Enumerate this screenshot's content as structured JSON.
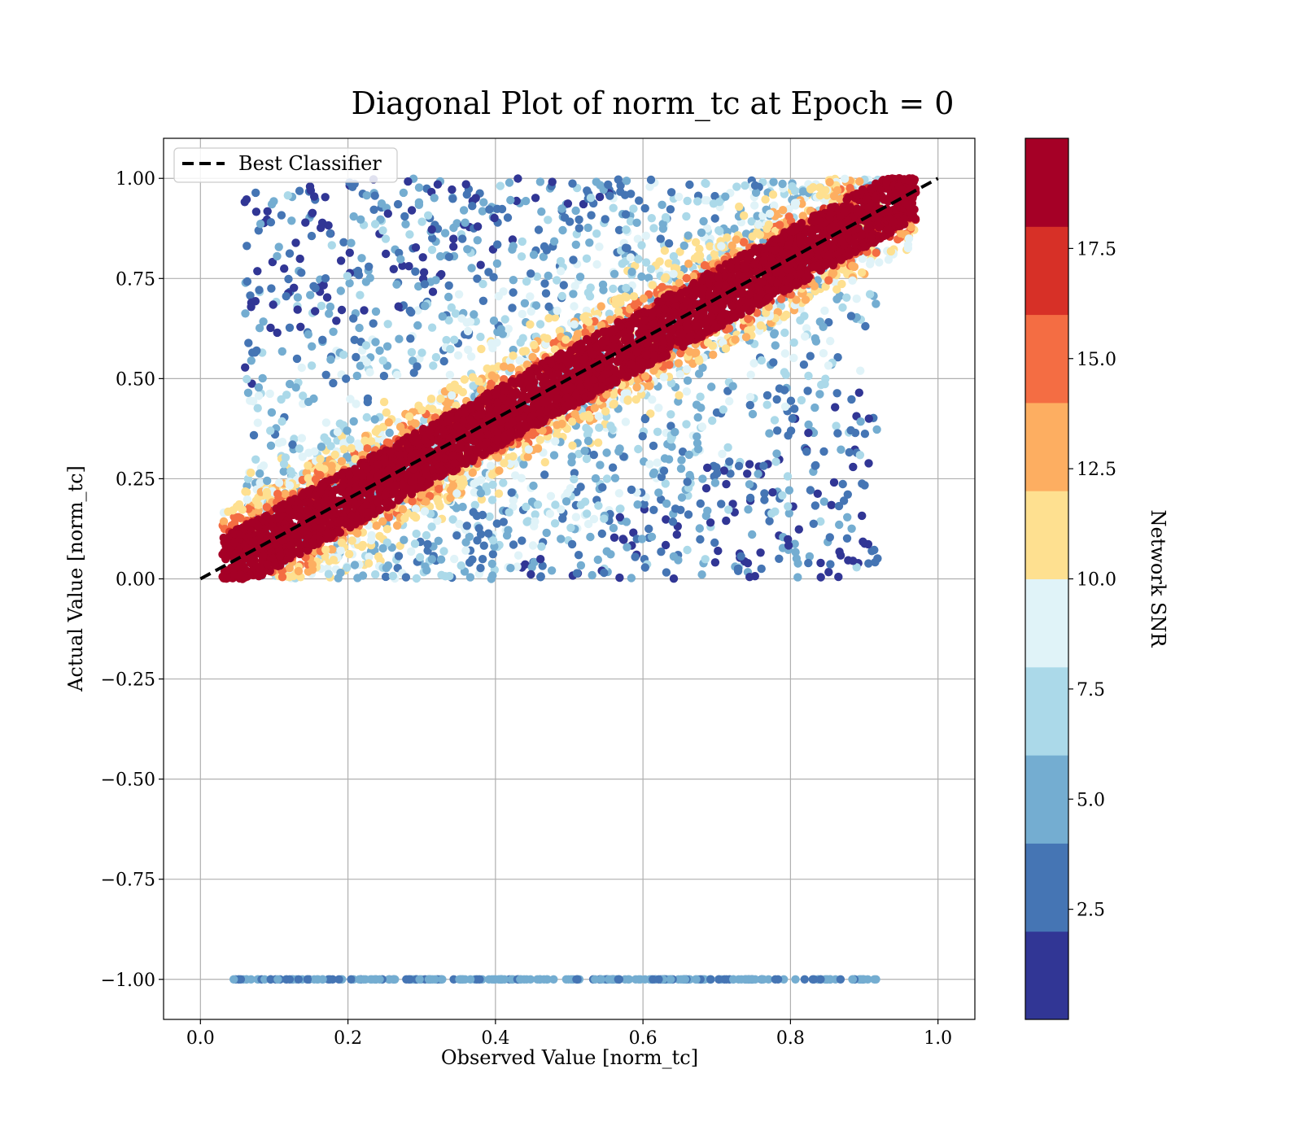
{
  "chart_data": {
    "type": "scatter",
    "title": "Diagonal Plot of norm_tc at Epoch = 0",
    "xlabel": "Observed Value [norm_tc]",
    "ylabel": "Actual Value [norm_tc]",
    "xlim": [
      -0.05,
      1.05
    ],
    "ylim": [
      -1.1,
      1.1
    ],
    "x_ticks": [
      0.0,
      0.2,
      0.4,
      0.6,
      0.8,
      1.0
    ],
    "x_tick_labels": [
      "0.0",
      "0.2",
      "0.4",
      "0.6",
      "0.8",
      "1.0"
    ],
    "y_ticks": [
      1.0,
      0.75,
      0.5,
      0.25,
      0.0,
      -0.25,
      -0.5,
      -0.75,
      -1.0
    ],
    "y_tick_labels": [
      "1.00",
      "0.75",
      "0.50",
      "0.25",
      "0.00",
      "−0.25",
      "−0.50",
      "−0.75",
      "−1.00"
    ],
    "grid": true,
    "legend": {
      "position": "top-left",
      "entries": [
        {
          "label": "Best Classifier",
          "style": "dashed",
          "color": "#000000"
        }
      ]
    },
    "reference_line": {
      "label": "Best Classifier",
      "x": [
        0.0,
        1.0
      ],
      "y": [
        0.0,
        1.0
      ]
    },
    "point_regions": [
      {
        "description_value": "diagonal band",
        "x_range": [
          0.03,
          0.97
        ],
        "y_offset_range": [
          -0.06,
          0.06
        ],
        "snr_range": [
          17.5,
          20
        ]
      },
      {
        "description_value": "upper scatter",
        "x_range": [
          0.06,
          0.9
        ],
        "y_range": [
          0.0,
          1.0
        ],
        "snr_range": [
          0.5,
          12
        ]
      },
      {
        "description_value": "lower scatter",
        "x_range": [
          0.2,
          0.95
        ],
        "y_range": [
          0.0,
          0.6
        ],
        "snr_range": [
          0.5,
          12
        ]
      },
      {
        "description_value": "invalid row",
        "x_range": [
          0.04,
          0.92
        ],
        "y_value": -1.0,
        "snr_range": [
          3,
          6
        ]
      }
    ],
    "colorbar": {
      "label": "Network SNR",
      "min": 0,
      "max": 20,
      "boundaries": [
        0,
        2,
        4,
        6,
        8,
        10,
        12,
        14,
        16,
        18,
        20
      ],
      "colors": [
        "#313695",
        "#4575b4",
        "#74add1",
        "#abd9e9",
        "#e0f3f8",
        "#fee090",
        "#fdae61",
        "#f46d43",
        "#d73027",
        "#a50026"
      ],
      "ticks": [
        2.5,
        5.0,
        7.5,
        10.0,
        12.5,
        15.0,
        17.5
      ],
      "tick_labels": [
        "2.5",
        "5.0",
        "7.5",
        "10.0",
        "12.5",
        "15.0",
        "17.5"
      ]
    }
  }
}
